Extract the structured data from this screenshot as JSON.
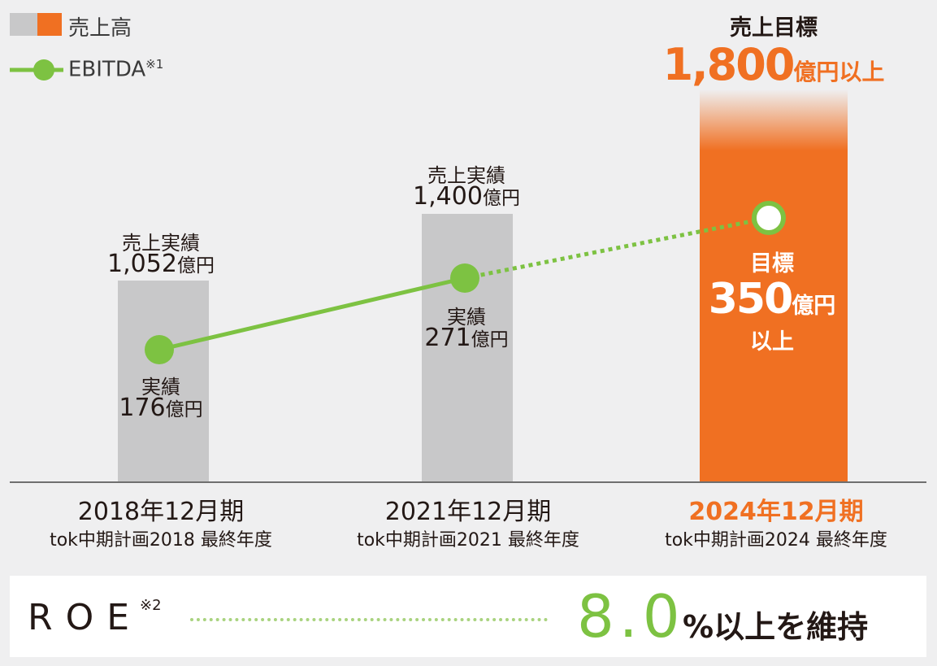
{
  "legend": {
    "sales_label": "売上高",
    "ebitda_label": "EBITDA",
    "ebitda_note": "※1"
  },
  "colors": {
    "gray_bar": "#c8c8c9",
    "orange": "#f07022",
    "green": "#7dc242",
    "background": "#efeff0"
  },
  "chart_data": {
    "type": "bar",
    "categories": [
      "2018年12月期",
      "2021年12月期",
      "2024年12月期"
    ],
    "series": [
      {
        "name": "売上高",
        "values": [
          1052,
          1400,
          1800
        ]
      },
      {
        "name": "EBITDA",
        "values": [
          176,
          271,
          350
        ]
      }
    ],
    "ylim": [
      0,
      1800
    ],
    "title": "",
    "xlabel": "",
    "ylabel": ""
  },
  "periods": [
    {
      "year_label": "2018年12月期",
      "plan_label": "tok中期計画2018 最終年度",
      "sales_caption": "売上実績",
      "sales_value": "1,052",
      "sales_unit": "億円",
      "ebitda_caption": "実績",
      "ebitda_value": "176",
      "ebitda_unit": "億円"
    },
    {
      "year_label": "2021年12月期",
      "plan_label": "tok中期計画2021 最終年度",
      "sales_caption": "売上実績",
      "sales_value": "1,400",
      "sales_unit": "億円",
      "ebitda_caption": "実績",
      "ebitda_value": "271",
      "ebitda_unit": "億円"
    },
    {
      "year_label": "2024年12月期",
      "plan_label": "tok中期計画2024 最終年度",
      "sales_caption": "売上目標",
      "sales_value": "1,800",
      "sales_unit": "億円以上",
      "ebitda_caption": "目標",
      "ebitda_value": "350",
      "ebitda_unit": "億円",
      "ebitda_suffix": "以上"
    }
  ],
  "roe": {
    "label": "ROE",
    "note": "※2",
    "value": "8.0",
    "suffix": "%以上を維持"
  }
}
